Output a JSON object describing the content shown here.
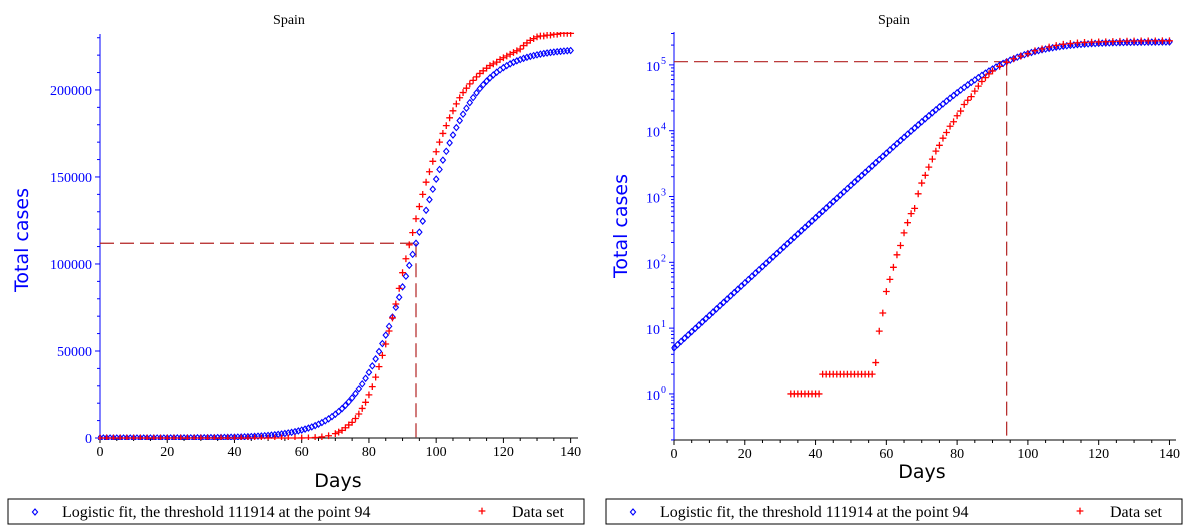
{
  "chart_data": [
    {
      "type": "scatter",
      "title": "Spain",
      "xlabel": "Days",
      "ylabel": "Total cases",
      "xlim": [
        0,
        141
      ],
      "ylim": [
        0,
        231000
      ],
      "yscale": "linear",
      "xticks": [
        0,
        20,
        40,
        60,
        80,
        100,
        120,
        140
      ],
      "yticks": [
        0,
        50000,
        100000,
        150000,
        200000
      ],
      "legend_position": "bottom",
      "threshold": {
        "x": 94,
        "y": 111914
      },
      "series": [
        {
          "name": "Logistic fit, the threshold 111914 at the point 94",
          "marker": "diamond",
          "color": "#0000ff",
          "model": "logistic",
          "params": {
            "K": 223828,
            "t0": 94,
            "x_start": 0,
            "x_end": 140,
            "y_at_0": 5
          }
        },
        {
          "name": "Data set",
          "marker": "plus",
          "color": "#ff0000",
          "x": [
            0,
            2,
            4,
            6,
            8,
            10,
            12,
            14,
            16,
            18,
            20,
            22,
            24,
            26,
            28,
            30,
            32,
            34,
            36,
            38,
            40,
            42,
            44,
            46,
            48,
            50,
            52,
            54,
            56,
            58,
            60,
            62,
            64,
            66,
            68,
            70,
            71,
            72,
            73,
            74,
            75,
            76,
            77,
            78,
            79,
            80,
            81,
            82,
            83,
            84,
            85,
            86,
            87,
            88,
            89,
            90,
            91,
            92,
            93,
            94,
            95,
            96,
            97,
            98,
            99,
            100,
            101,
            102,
            103,
            104,
            105,
            106,
            107,
            108,
            109,
            110,
            111,
            112,
            113,
            114,
            115,
            116,
            117,
            118,
            119,
            120,
            121,
            122,
            123,
            124,
            125,
            126,
            127,
            128,
            129,
            130,
            131,
            132,
            133,
            134,
            135,
            136,
            137,
            138,
            139,
            140
          ],
          "y": [
            0,
            0,
            0,
            0,
            0,
            0,
            0,
            0,
            0,
            0,
            0,
            0,
            0,
            0,
            0,
            0,
            0,
            0,
            0,
            0,
            0,
            0,
            0,
            0,
            0,
            0,
            0,
            0,
            0,
            0,
            35,
            84,
            280,
            600,
            1300,
            2500,
            3400,
            4400,
            5900,
            7500,
            9000,
            11200,
            13800,
            17000,
            20500,
            24800,
            29500,
            35000,
            41000,
            47500,
            54000,
            61500,
            69000,
            77000,
            86000,
            95000,
            103000,
            111000,
            118000,
            126000,
            133000,
            140000,
            147000,
            153000,
            159000,
            164500,
            170000,
            175000,
            179500,
            184000,
            188000,
            192000,
            195500,
            198500,
            201000,
            203500,
            205500,
            207500,
            209500,
            211000,
            212500,
            214000,
            215000,
            216000,
            217500,
            218500,
            219500,
            220500,
            221500,
            222500,
            223500,
            225500,
            227000,
            228500,
            229500,
            230500,
            231000,
            231000,
            231500,
            231500,
            232000,
            232000,
            232500,
            232500,
            232500,
            232500
          ]
        }
      ]
    },
    {
      "type": "scatter",
      "title": "Spain",
      "xlabel": "Days",
      "ylabel": "Total cases",
      "xlim": [
        0,
        141
      ],
      "yscale": "log",
      "ylim_log10": [
        -0.7,
        5.5
      ],
      "xticks": [
        0,
        20,
        40,
        60,
        80,
        100,
        120,
        140
      ],
      "ytick_labels": [
        {
          "base": "10",
          "exp": "0",
          "value": 1
        },
        {
          "base": "10",
          "exp": "1",
          "value": 10
        },
        {
          "base": "10",
          "exp": "2",
          "value": 100
        },
        {
          "base": "10",
          "exp": "3",
          "value": 1000
        },
        {
          "base": "10",
          "exp": "4",
          "value": 10000
        },
        {
          "base": "10",
          "exp": "5",
          "value": 100000
        }
      ],
      "legend_position": "bottom",
      "threshold": {
        "x": 94,
        "y": 111914
      },
      "series": [
        {
          "name": "Logistic fit, the threshold 111914 at the point 94",
          "marker": "diamond",
          "color": "#0000ff",
          "model": "logistic"
        },
        {
          "name": "Data set",
          "marker": "plus",
          "color": "#ff0000",
          "x": [
            33,
            34,
            35,
            36,
            37,
            38,
            39,
            40,
            41,
            42,
            43,
            44,
            45,
            46,
            47,
            48,
            49,
            50,
            51,
            52,
            53,
            54,
            55,
            56,
            57,
            58,
            59,
            60,
            61,
            62,
            63,
            64,
            65,
            66,
            67,
            68,
            69,
            70,
            71,
            72,
            73,
            74,
            75,
            76,
            77,
            78,
            79,
            80,
            81,
            82,
            83,
            84,
            85,
            86,
            87,
            88,
            89,
            90,
            92,
            94,
            96,
            98,
            100,
            102,
            104,
            106,
            108,
            110,
            112,
            114,
            116,
            118,
            120,
            122,
            124,
            126,
            128,
            130,
            132,
            134,
            136,
            138,
            140
          ],
          "y": [
            1,
            1,
            1,
            1,
            1,
            1,
            1,
            1,
            1,
            2,
            2,
            2,
            2,
            2,
            2,
            2,
            2,
            2,
            2,
            2,
            2,
            2,
            2,
            2,
            3,
            9,
            17,
            36,
            55,
            84,
            130,
            180,
            280,
            400,
            550,
            660,
            1100,
            1600,
            2100,
            2800,
            3700,
            4900,
            6000,
            7700,
            9400,
            11700,
            13700,
            16900,
            19900,
            25000,
            29000,
            33000,
            40000,
            47600,
            56000,
            64000,
            73000,
            81000,
            95000,
            110000,
            124000,
            136000,
            148000,
            164000,
            175000,
            187000,
            197000,
            206000,
            211000,
            216000,
            219500,
            222000,
            223500,
            225000,
            227000,
            228500,
            230000,
            231000,
            231500,
            232000,
            232000,
            232500,
            232500
          ]
        }
      ]
    }
  ]
}
